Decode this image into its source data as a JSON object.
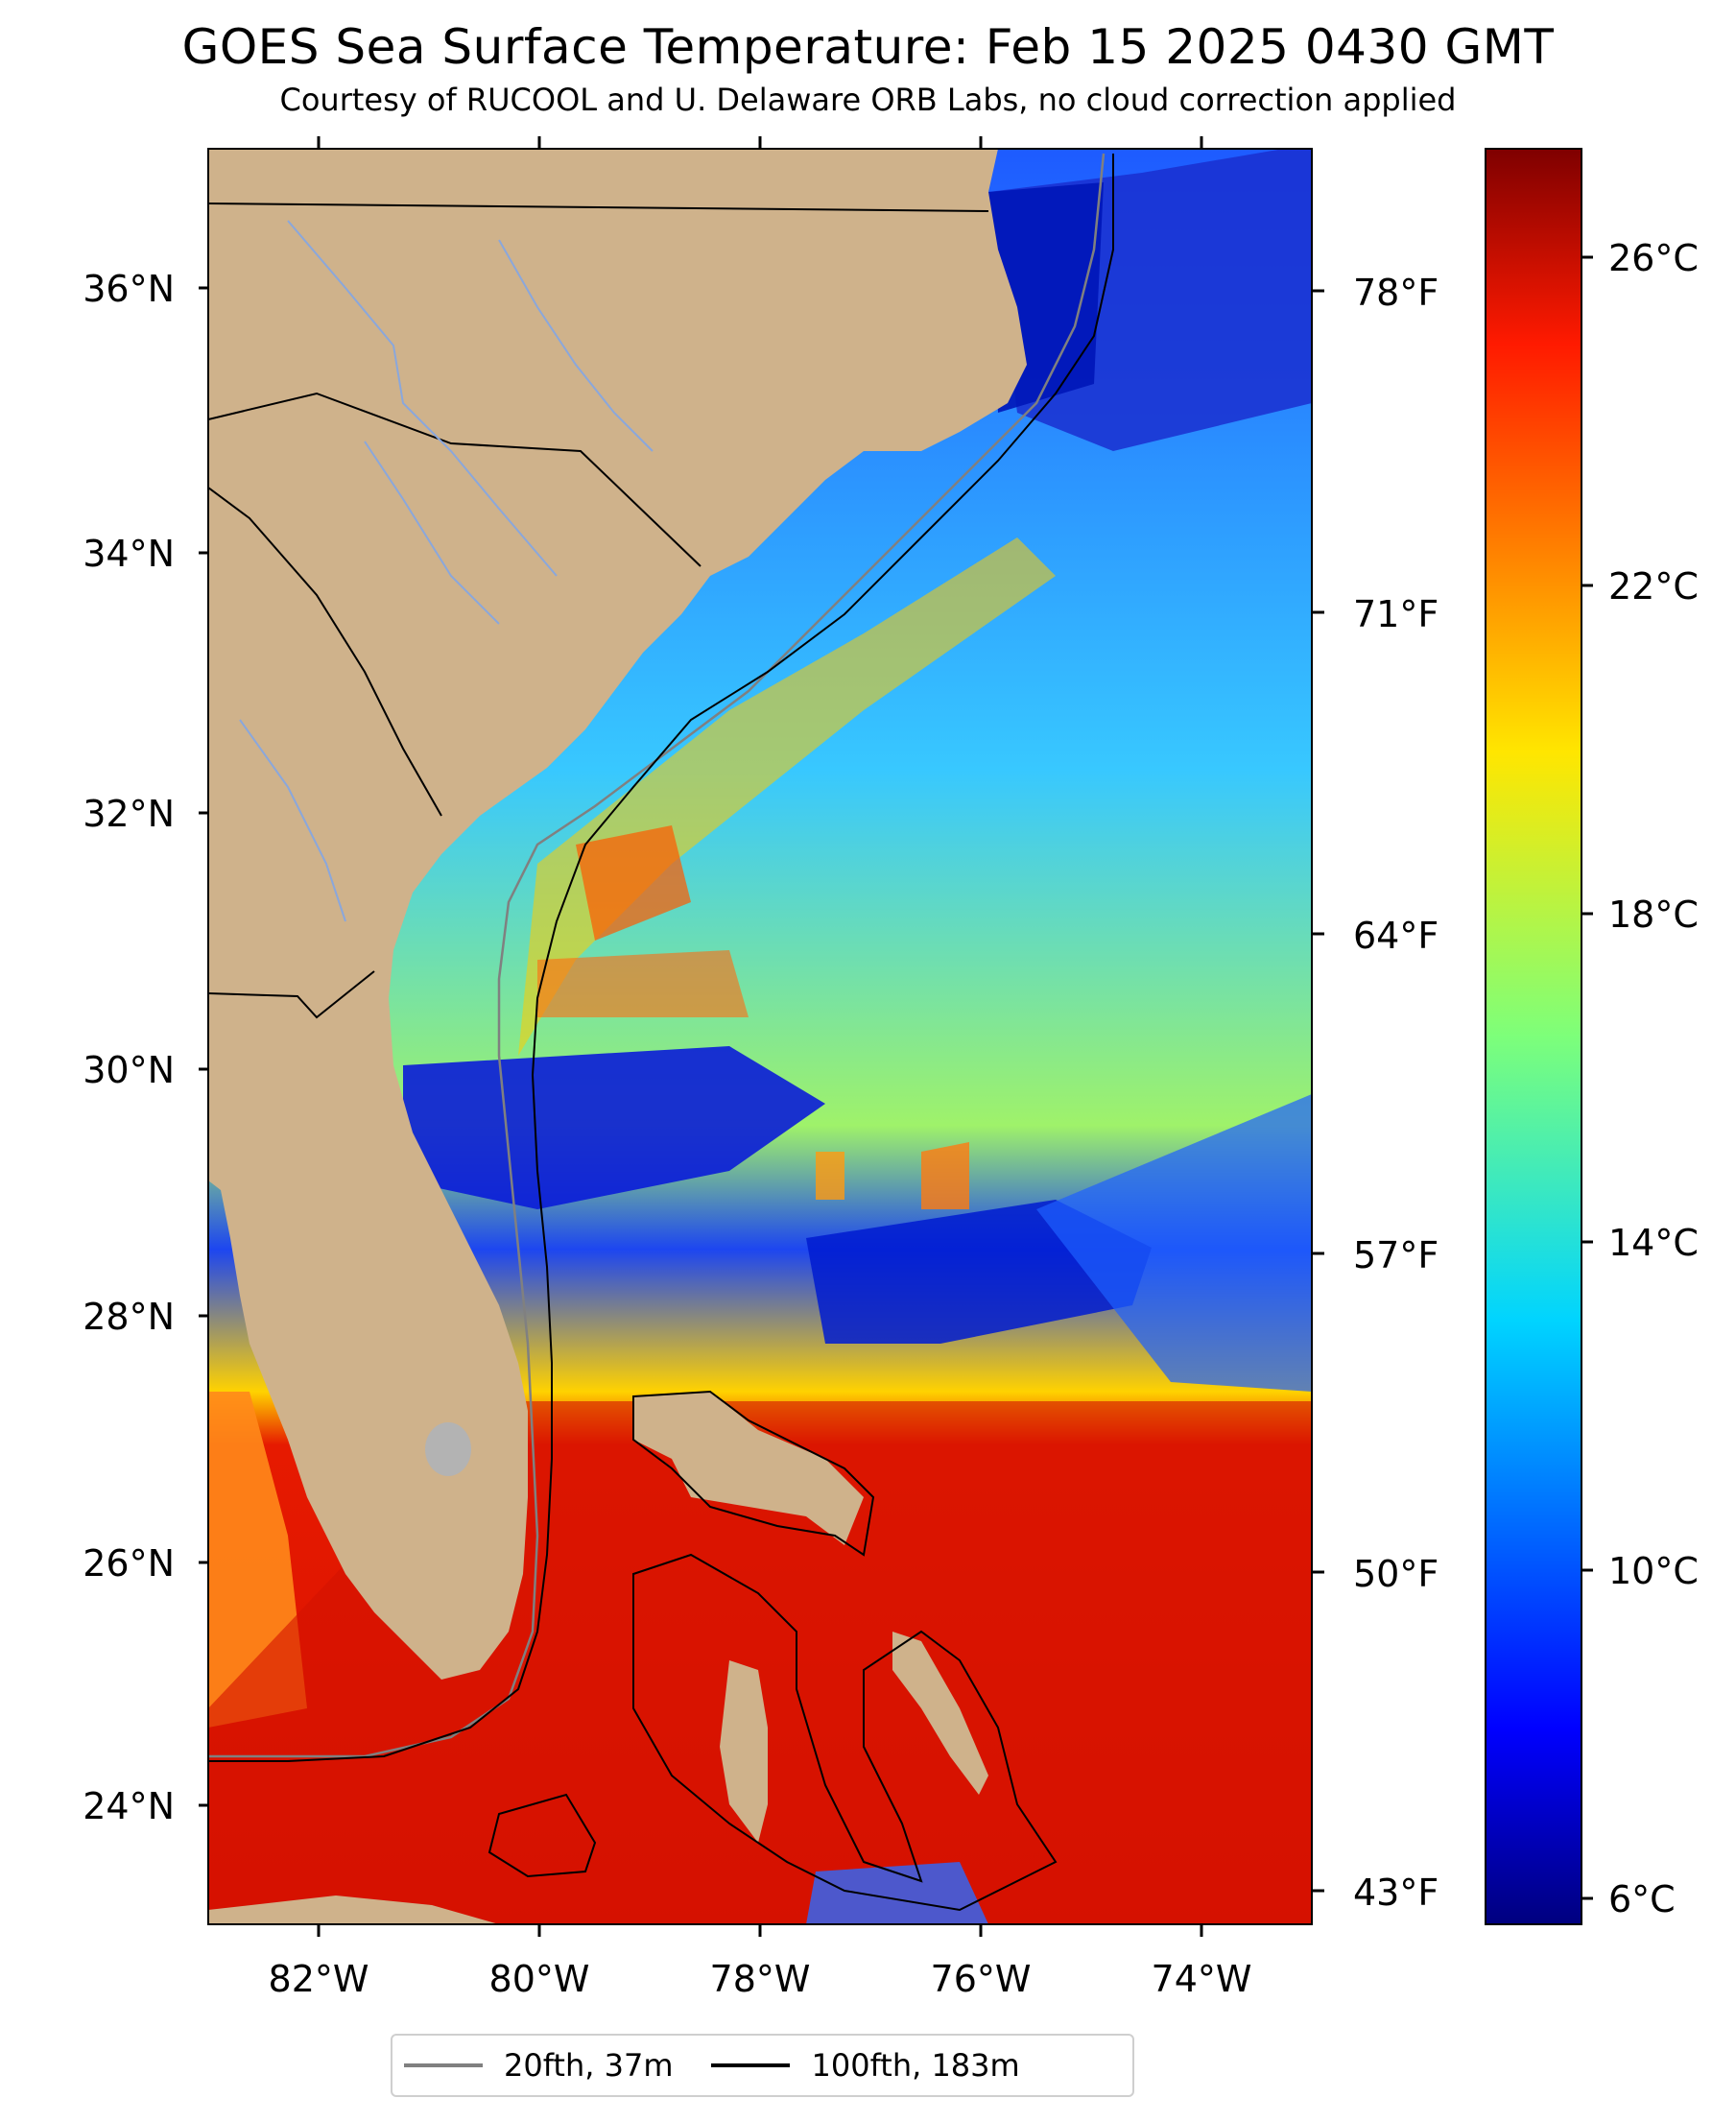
{
  "title": "GOES Sea Surface Temperature: Feb 15 2025 0430 GMT",
  "subtitle": "Courtesy of RUCOOL and U. Delaware ORB Labs, no cloud correction applied",
  "map": {
    "extent": {
      "lon_min": -83,
      "lon_max": -73,
      "lat_min": 23.1,
      "lat_max": 37
    },
    "lat_ticks": [
      "24°N",
      "26°N",
      "28°N",
      "30°N",
      "32°N",
      "34°N",
      "36°N"
    ],
    "lon_ticks": [
      "82°W",
      "80°W",
      "78°W",
      "76°W",
      "74°W"
    ],
    "land_color": "#cfb28b",
    "region": "US Southeast Atlantic coast, Florida, Bahamas"
  },
  "fahrenheit_axis": {
    "ticks": [
      "78°F",
      "71°F",
      "64°F",
      "57°F",
      "50°F",
      "43°F"
    ]
  },
  "colorbar": {
    "colormap": "jet",
    "range_c": [
      5.5,
      27.5
    ],
    "ticks": [
      "26°C",
      "22°C",
      "18°C",
      "14°C",
      "10°C",
      "6°C"
    ]
  },
  "legend": {
    "items": [
      {
        "label": "20fth, 37m",
        "color": "#808080"
      },
      {
        "label": "100fth, 183m",
        "color": "#000000"
      }
    ]
  }
}
